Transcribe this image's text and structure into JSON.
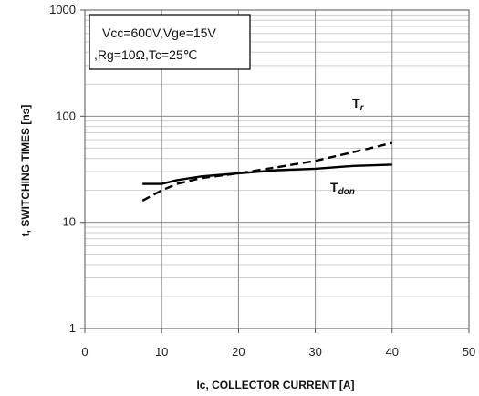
{
  "chart_data": {
    "type": "line",
    "xlabel": "Ic, COLLECTOR CURRENT [A]",
    "ylabel": "t, SWITCHING TIMES [ns]",
    "xlim": [
      0,
      50
    ],
    "ylim": [
      1,
      1000
    ],
    "yscale": "log",
    "grid": true,
    "x_ticks": [
      "0",
      "10",
      "20",
      "30",
      "40",
      "50"
    ],
    "y_ticks": [
      "1",
      "10",
      "100",
      "1000"
    ],
    "annotation": {
      "line1": "Vcc=600V,Vge=15V",
      "line2": ",Rg=10Ω,Tc=25℃"
    },
    "series": [
      {
        "name": "Tr",
        "label_main": "T",
        "label_sub": "r",
        "style": "dashed",
        "color": "#000000",
        "x": [
          7.5,
          10,
          12,
          15,
          20,
          25,
          30,
          35,
          40
        ],
        "y": [
          16,
          20,
          23,
          26,
          29,
          33,
          38,
          46,
          56
        ]
      },
      {
        "name": "Tdon",
        "label_main": "T",
        "label_sub": "don",
        "style": "solid",
        "color": "#000000",
        "x": [
          7.5,
          10,
          12,
          15,
          20,
          25,
          30,
          35,
          40
        ],
        "y": [
          23,
          23,
          25,
          27,
          29,
          31,
          32,
          34,
          35
        ]
      }
    ]
  }
}
